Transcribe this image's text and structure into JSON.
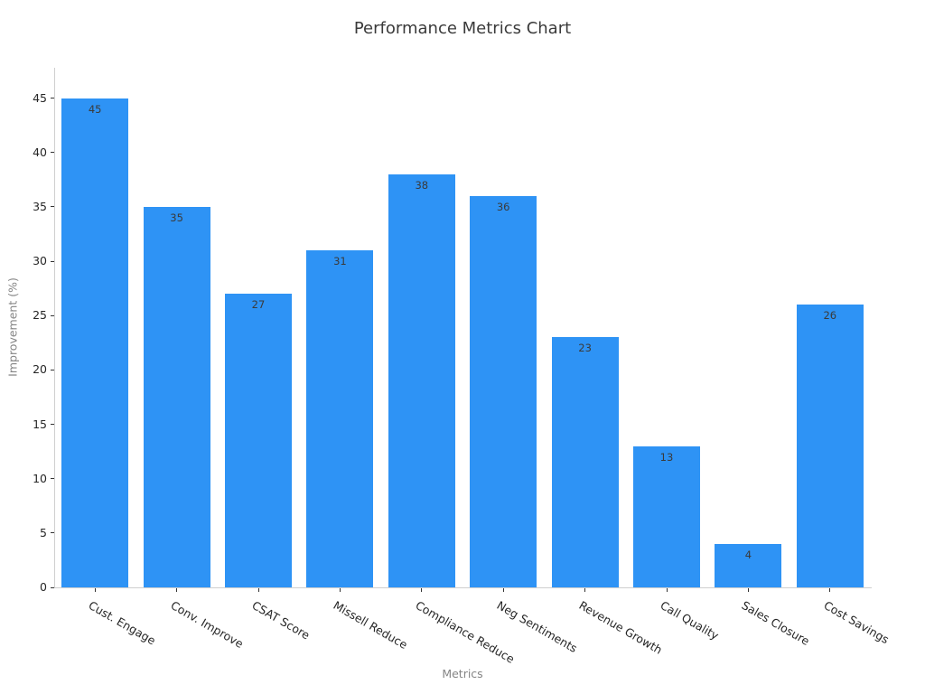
{
  "chart_data": {
    "type": "bar",
    "title": "Performance Metrics Chart",
    "xlabel": "Metrics",
    "ylabel": "Improvement (%)",
    "categories": [
      "Cust. Engage",
      "Conv. Improve",
      "CSAT Score",
      "Missell Reduce",
      "Compliance Reduce",
      "Neg Sentiments",
      "Revenue Growth",
      "Call Quality",
      "Sales Closure",
      "Cost Savings"
    ],
    "values": [
      45,
      35,
      27,
      31,
      38,
      36,
      23,
      13,
      4,
      26
    ],
    "yticks": [
      0,
      5,
      10,
      15,
      20,
      25,
      30,
      35,
      40,
      45
    ],
    "ylim": [
      0,
      47.8
    ],
    "grid": false,
    "legend": null,
    "value_labels_shown": true,
    "colors": {
      "bar": "#2E93F5",
      "spine": "#cfcfcf",
      "tick": "#333333",
      "tick_label": "#262626",
      "axis_label": "#858585",
      "title": "#3a3a3a",
      "value_label": "#3a3a3a",
      "background": "#ffffff"
    }
  }
}
